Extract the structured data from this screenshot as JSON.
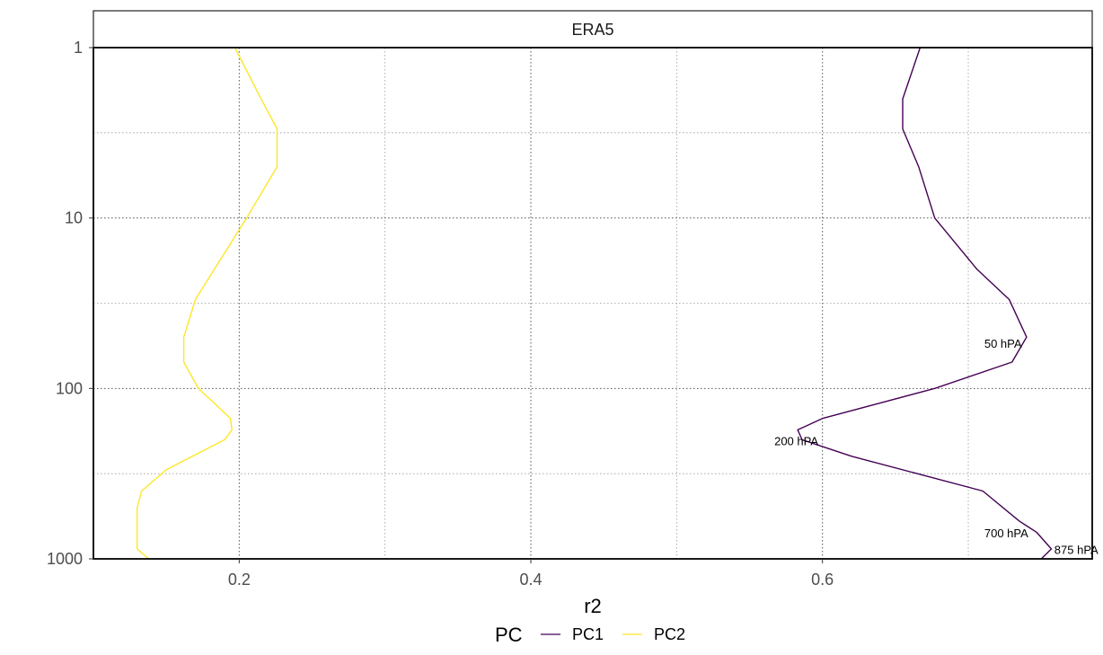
{
  "chart_data": {
    "type": "line",
    "panel_title": "ERA5",
    "xlabel": "r2",
    "ylabel": "",
    "xlim": [
      0.1,
      0.785
    ],
    "ylim": [
      1,
      1000
    ],
    "y_scale": "log",
    "y_reversed": true,
    "x_ticks": [
      0.2,
      0.4,
      0.6
    ],
    "x_tick_labels": [
      "0.2",
      "0.4",
      "0.6"
    ],
    "y_ticks": [
      1,
      10,
      100,
      1000
    ],
    "y_tick_labels": [
      "1",
      "10",
      "100",
      "1000"
    ],
    "grid": true,
    "legend": {
      "title": "PC",
      "position": "bottom"
    },
    "series": [
      {
        "name": "PC1",
        "color": "#440154",
        "points": [
          [
            0.667,
            1
          ],
          [
            0.655,
            2
          ],
          [
            0.655,
            3
          ],
          [
            0.666,
            5
          ],
          [
            0.677,
            10
          ],
          [
            0.706,
            20
          ],
          [
            0.728,
            30
          ],
          [
            0.74,
            50
          ],
          [
            0.73,
            70
          ],
          [
            0.677,
            100
          ],
          [
            0.6,
            150
          ],
          [
            0.583,
            175
          ],
          [
            0.586,
            200
          ],
          [
            0.62,
            250
          ],
          [
            0.71,
            400
          ],
          [
            0.735,
            600
          ],
          [
            0.747,
            700
          ],
          [
            0.757,
            875
          ],
          [
            0.75,
            1000
          ]
        ]
      },
      {
        "name": "PC2",
        "color": "#FDE725",
        "points": [
          [
            0.197,
            1
          ],
          [
            0.215,
            2
          ],
          [
            0.226,
            3
          ],
          [
            0.226,
            5
          ],
          [
            0.205,
            10
          ],
          [
            0.17,
            30
          ],
          [
            0.162,
            50
          ],
          [
            0.162,
            70
          ],
          [
            0.172,
            100
          ],
          [
            0.194,
            150
          ],
          [
            0.195,
            175
          ],
          [
            0.19,
            200
          ],
          [
            0.15,
            300
          ],
          [
            0.133,
            400
          ],
          [
            0.13,
            500
          ],
          [
            0.13,
            700
          ],
          [
            0.13,
            875
          ],
          [
            0.138,
            1000
          ]
        ]
      }
    ],
    "annotations": [
      {
        "text": "50 hPA",
        "x": 0.711,
        "y": 55
      },
      {
        "text": "200 hPA",
        "x": 0.567,
        "y": 205
      },
      {
        "text": "700 hPA",
        "x": 0.711,
        "y": 710
      },
      {
        "text": "875 hPA",
        "x": 0.759,
        "y": 890
      }
    ]
  }
}
